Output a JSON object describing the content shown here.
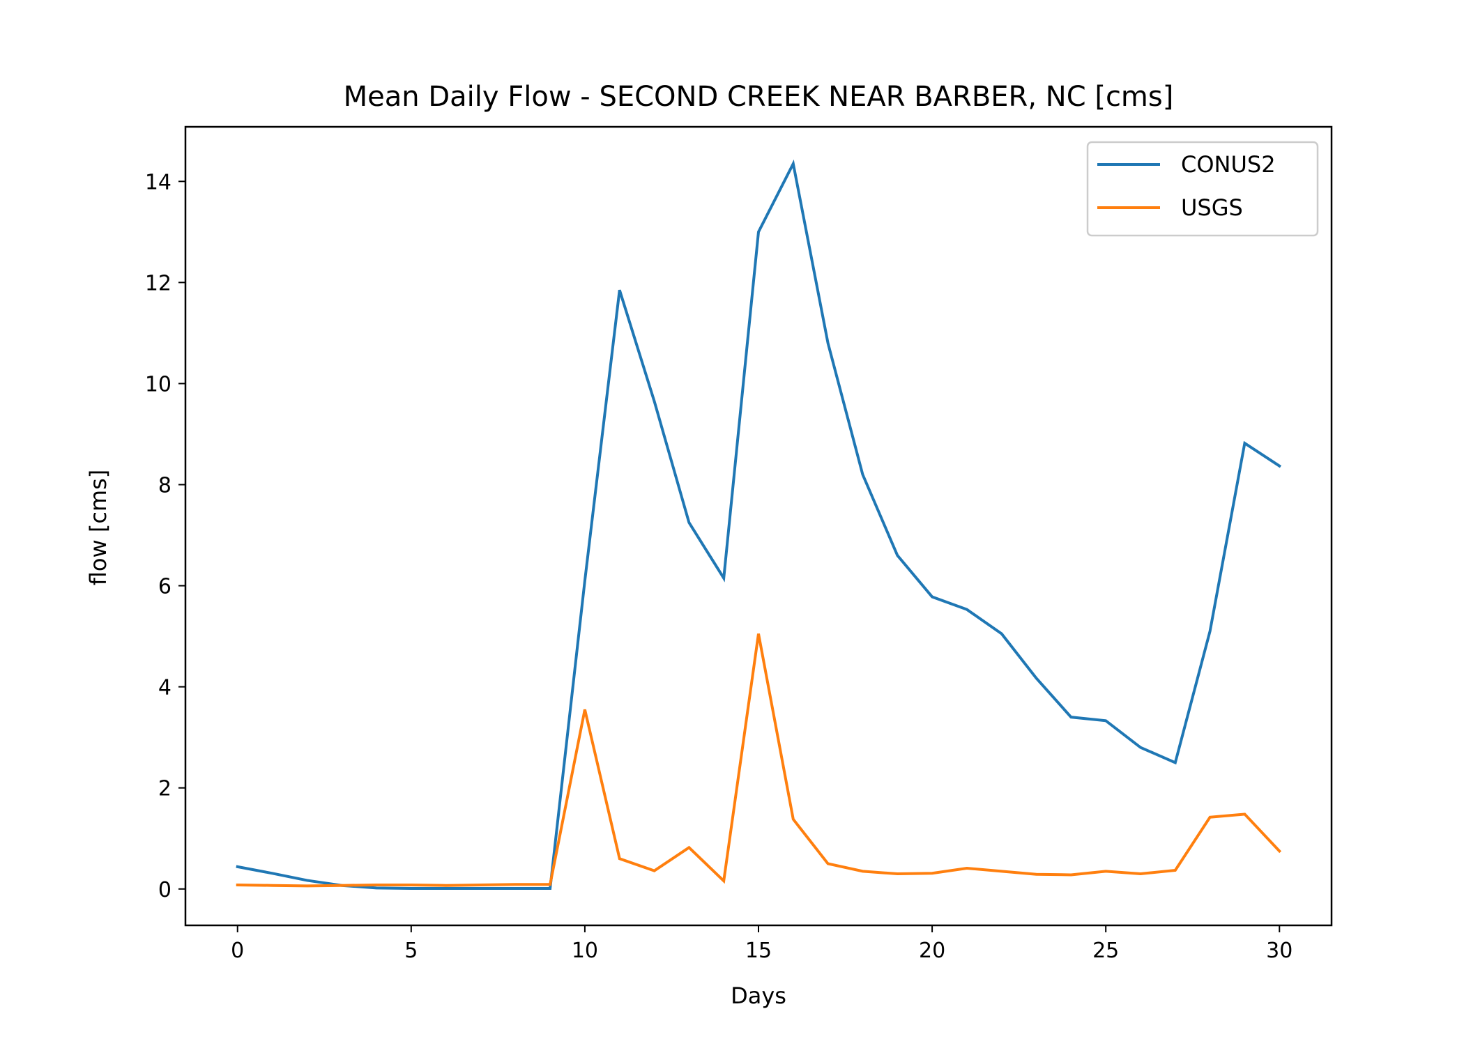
{
  "chart_data": {
    "type": "line",
    "title": "Mean Daily Flow - SECOND CREEK NEAR BARBER, NC [cms]",
    "xlabel": "Days",
    "ylabel": "flow [cms]",
    "xlim": [
      -1.5,
      31.5
    ],
    "ylim": [
      -0.72,
      15.08
    ],
    "xticks": [
      0,
      5,
      10,
      15,
      20,
      25,
      30
    ],
    "yticks": [
      0,
      2,
      4,
      6,
      8,
      10,
      12,
      14
    ],
    "grid": false,
    "legend_position": "upper right",
    "x": [
      0,
      1,
      2,
      3,
      4,
      5,
      6,
      7,
      8,
      9,
      10,
      11,
      12,
      13,
      14,
      15,
      16,
      17,
      18,
      19,
      20,
      21,
      22,
      23,
      24,
      25,
      26,
      27,
      28,
      29,
      30
    ],
    "series": [
      {
        "name": "CONUS2",
        "color": "#1f77b4",
        "values": [
          0.44,
          0.31,
          0.17,
          0.07,
          0.02,
          0.01,
          0.01,
          0.01,
          0.01,
          0.01,
          6.1,
          11.85,
          9.65,
          7.25,
          6.15,
          13.0,
          14.35,
          10.8,
          8.2,
          6.6,
          5.78,
          5.53,
          5.05,
          4.17,
          3.4,
          3.33,
          2.8,
          2.5,
          5.1,
          8.82,
          8.37
        ]
      },
      {
        "name": "USGS",
        "color": "#ff7f0e",
        "values": [
          0.08,
          0.07,
          0.06,
          0.07,
          0.08,
          0.08,
          0.07,
          0.08,
          0.09,
          0.09,
          3.55,
          0.6,
          0.36,
          0.82,
          0.16,
          5.05,
          1.38,
          0.5,
          0.35,
          0.3,
          0.31,
          0.41,
          0.35,
          0.29,
          0.28,
          0.35,
          0.3,
          0.37,
          1.42,
          1.48,
          0.75
        ]
      }
    ]
  }
}
